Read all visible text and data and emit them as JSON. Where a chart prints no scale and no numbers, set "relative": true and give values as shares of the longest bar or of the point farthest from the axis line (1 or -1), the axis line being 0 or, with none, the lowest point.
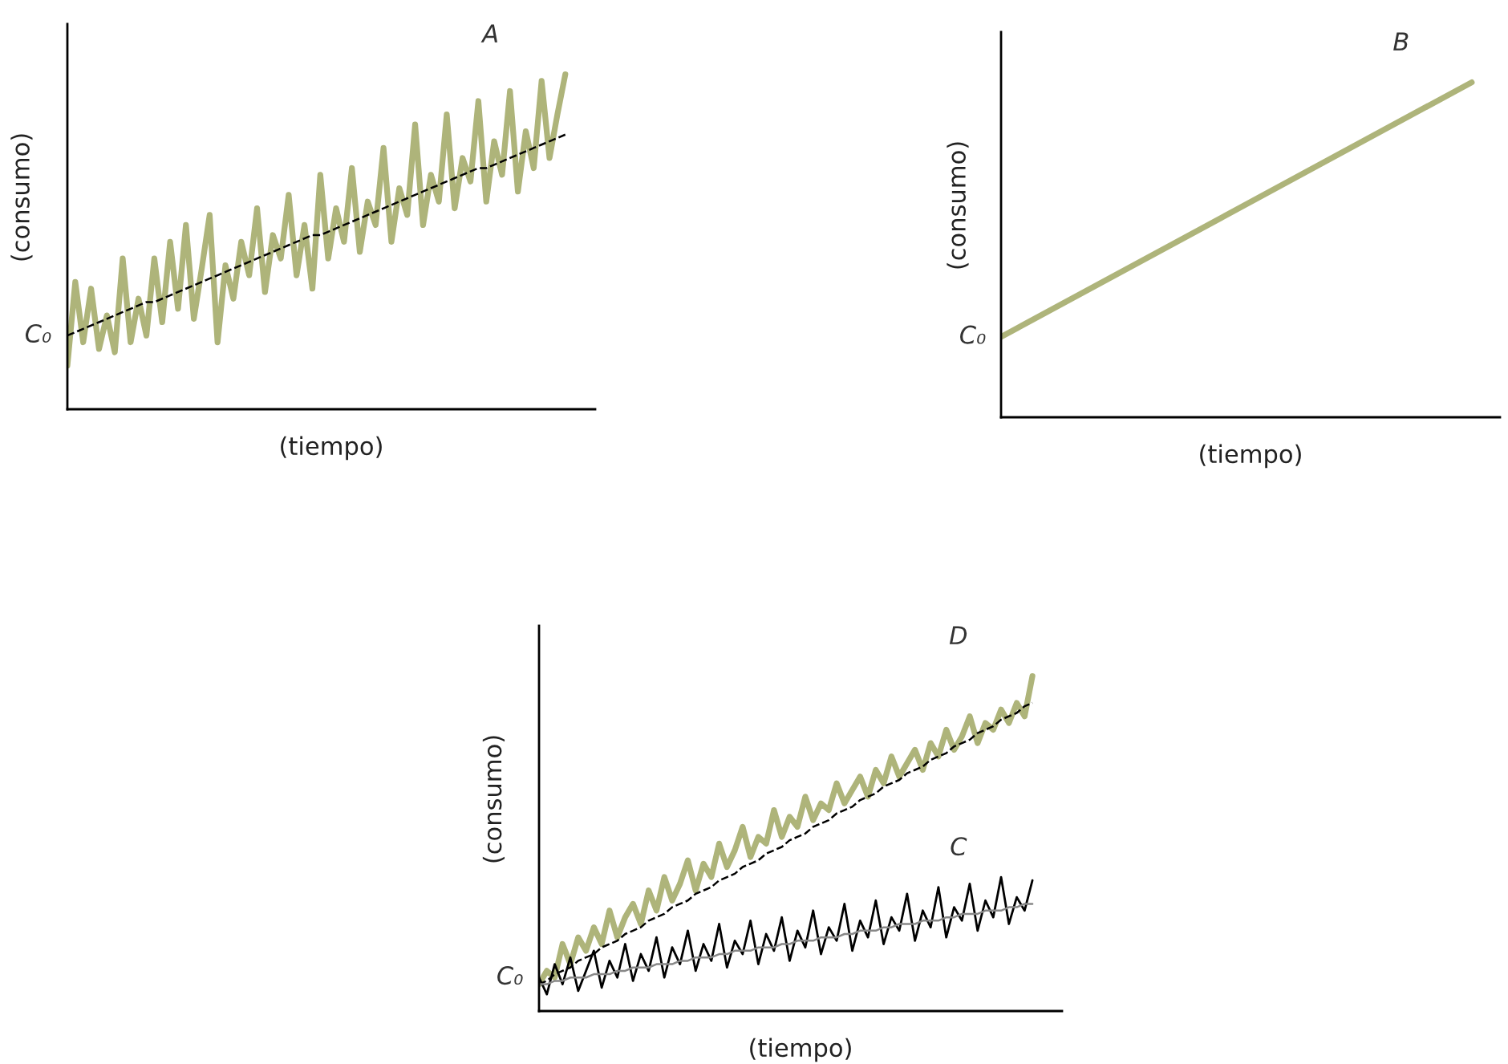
{
  "chart_data": [
    {
      "type": "line",
      "relative": true,
      "xlabel": "(tiempo)",
      "ylabel": "(consumo)",
      "categories": [
        null,
        null,
        null,
        null,
        null,
        null,
        null,
        null,
        null,
        null,
        null,
        null,
        null,
        null,
        null,
        null,
        null,
        null,
        null,
        null,
        null,
        null,
        null,
        null,
        null,
        null,
        null,
        null,
        null,
        null,
        null,
        null,
        null,
        null,
        null,
        null,
        null,
        null,
        null,
        null,
        null,
        null,
        null,
        null,
        null,
        null,
        null,
        null,
        null,
        null,
        null,
        null,
        null,
        null,
        null,
        null,
        null,
        null,
        null,
        null,
        null,
        null,
        null,
        null
      ],
      "annotations": [
        "C₀"
      ],
      "series": [
        {
          "name": "A",
          "color": "#aeb47a",
          "line_style": "solid",
          "values": [
            0.13,
            0.38,
            0.2,
            0.36,
            0.18,
            0.28,
            0.17,
            0.45,
            0.2,
            0.33,
            0.22,
            0.45,
            0.26,
            0.5,
            0.3,
            0.55,
            0.27,
            0.42,
            0.58,
            0.2,
            0.43,
            0.33,
            0.5,
            0.4,
            0.6,
            0.35,
            0.52,
            0.45,
            0.64,
            0.4,
            0.55,
            0.36,
            0.7,
            0.45,
            0.6,
            0.5,
            0.72,
            0.47,
            0.62,
            0.55,
            0.78,
            0.5,
            0.66,
            0.58,
            0.85,
            0.55,
            0.7,
            0.62,
            0.88,
            0.6,
            0.75,
            0.68,
            0.92,
            0.62,
            0.8,
            0.7,
            0.95,
            0.65,
            0.83,
            0.72,
            0.98,
            0.75,
            0.88,
            1.0
          ]
        },
        {
          "color": "#000000",
          "line_style": "dashed",
          "values": [
            0.22,
            0.23,
            0.24,
            0.25,
            0.26,
            0.27,
            0.28,
            0.29,
            0.3,
            0.31,
            0.32,
            0.32,
            0.33,
            0.34,
            0.35,
            0.36,
            0.37,
            0.38,
            0.39,
            0.4,
            0.41,
            0.42,
            0.43,
            0.44,
            0.45,
            0.46,
            0.47,
            0.48,
            0.49,
            0.5,
            0.51,
            0.52,
            0.52,
            0.53,
            0.54,
            0.55,
            0.56,
            0.57,
            0.58,
            0.59,
            0.6,
            0.61,
            0.62,
            0.63,
            0.64,
            0.65,
            0.66,
            0.67,
            0.68,
            0.69,
            0.7,
            0.71,
            0.72,
            0.72,
            0.73,
            0.74,
            0.75,
            0.76,
            0.77,
            0.78,
            0.79,
            0.8,
            0.81,
            0.82
          ]
        }
      ]
    },
    {
      "type": "line",
      "relative": true,
      "xlabel": "(tiempo)",
      "ylabel": "(consumo)",
      "categories": [
        null,
        null
      ],
      "annotations": [
        "C₀"
      ],
      "series": [
        {
          "name": "B",
          "color": "#aeb47a",
          "line_style": "solid",
          "values": [
            0.24,
            1.0
          ]
        }
      ]
    },
    {
      "type": "line",
      "relative": true,
      "xlabel": "(tiempo)",
      "ylabel": "(consumo)",
      "categories": [
        null,
        null,
        null,
        null,
        null,
        null,
        null,
        null,
        null,
        null,
        null,
        null,
        null,
        null,
        null,
        null,
        null,
        null,
        null,
        null,
        null,
        null,
        null,
        null,
        null,
        null,
        null,
        null,
        null,
        null,
        null,
        null,
        null,
        null,
        null,
        null,
        null,
        null,
        null,
        null,
        null,
        null,
        null,
        null,
        null,
        null,
        null,
        null,
        null,
        null,
        null,
        null,
        null,
        null,
        null,
        null,
        null,
        null,
        null,
        null,
        null,
        null,
        null,
        null
      ],
      "annotations": [
        "C₀"
      ],
      "series": [
        {
          "name": "D",
          "color": "#aeb47a",
          "line_style": "solid",
          "values": [
            0.08,
            0.12,
            0.1,
            0.2,
            0.14,
            0.22,
            0.18,
            0.25,
            0.2,
            0.3,
            0.22,
            0.28,
            0.32,
            0.26,
            0.36,
            0.3,
            0.4,
            0.33,
            0.38,
            0.45,
            0.36,
            0.44,
            0.4,
            0.5,
            0.43,
            0.48,
            0.55,
            0.46,
            0.52,
            0.5,
            0.6,
            0.52,
            0.58,
            0.55,
            0.64,
            0.57,
            0.62,
            0.6,
            0.68,
            0.62,
            0.66,
            0.7,
            0.64,
            0.72,
            0.68,
            0.76,
            0.7,
            0.74,
            0.78,
            0.72,
            0.8,
            0.76,
            0.84,
            0.78,
            0.82,
            0.88,
            0.8,
            0.86,
            0.84,
            0.9,
            0.86,
            0.92,
            0.88,
            1.0
          ]
        },
        {
          "color": "#000000",
          "line_style": "dashed",
          "values": [
            0.08,
            0.09,
            0.11,
            0.12,
            0.13,
            0.15,
            0.16,
            0.17,
            0.19,
            0.2,
            0.21,
            0.23,
            0.24,
            0.25,
            0.27,
            0.28,
            0.29,
            0.31,
            0.32,
            0.33,
            0.35,
            0.36,
            0.37,
            0.39,
            0.4,
            0.41,
            0.43,
            0.44,
            0.45,
            0.47,
            0.48,
            0.49,
            0.51,
            0.52,
            0.53,
            0.55,
            0.56,
            0.57,
            0.59,
            0.6,
            0.61,
            0.63,
            0.64,
            0.65,
            0.67,
            0.68,
            0.69,
            0.71,
            0.72,
            0.73,
            0.75,
            0.76,
            0.77,
            0.79,
            0.8,
            0.81,
            0.83,
            0.84,
            0.85,
            0.87,
            0.88,
            0.89,
            0.91,
            0.92
          ]
        },
        {
          "name": "C",
          "color": "#000000",
          "line_style": "solid",
          "values": [
            0.1,
            0.05,
            0.14,
            0.08,
            0.16,
            0.06,
            0.12,
            0.18,
            0.07,
            0.15,
            0.1,
            0.2,
            0.09,
            0.17,
            0.12,
            0.22,
            0.1,
            0.19,
            0.14,
            0.24,
            0.12,
            0.2,
            0.15,
            0.26,
            0.13,
            0.21,
            0.17,
            0.27,
            0.14,
            0.23,
            0.18,
            0.28,
            0.15,
            0.24,
            0.19,
            0.3,
            0.17,
            0.25,
            0.21,
            0.32,
            0.18,
            0.27,
            0.22,
            0.33,
            0.2,
            0.28,
            0.24,
            0.35,
            0.21,
            0.3,
            0.25,
            0.37,
            0.22,
            0.31,
            0.27,
            0.38,
            0.24,
            0.33,
            0.28,
            0.4,
            0.26,
            0.34,
            0.3,
            0.39
          ]
        },
        {
          "color": "#888888",
          "line_style": "solid",
          "values": [
            0.08,
            0.08,
            0.09,
            0.09,
            0.1,
            0.1,
            0.1,
            0.11,
            0.11,
            0.11,
            0.12,
            0.12,
            0.13,
            0.13,
            0.13,
            0.14,
            0.14,
            0.14,
            0.15,
            0.15,
            0.16,
            0.16,
            0.16,
            0.17,
            0.17,
            0.18,
            0.18,
            0.18,
            0.19,
            0.19,
            0.19,
            0.2,
            0.2,
            0.21,
            0.21,
            0.21,
            0.22,
            0.22,
            0.22,
            0.23,
            0.23,
            0.24,
            0.24,
            0.24,
            0.25,
            0.25,
            0.26,
            0.26,
            0.26,
            0.27,
            0.27,
            0.27,
            0.28,
            0.28,
            0.29,
            0.29,
            0.29,
            0.3,
            0.3,
            0.3,
            0.31,
            0.31,
            0.32,
            0.32
          ]
        }
      ]
    }
  ]
}
